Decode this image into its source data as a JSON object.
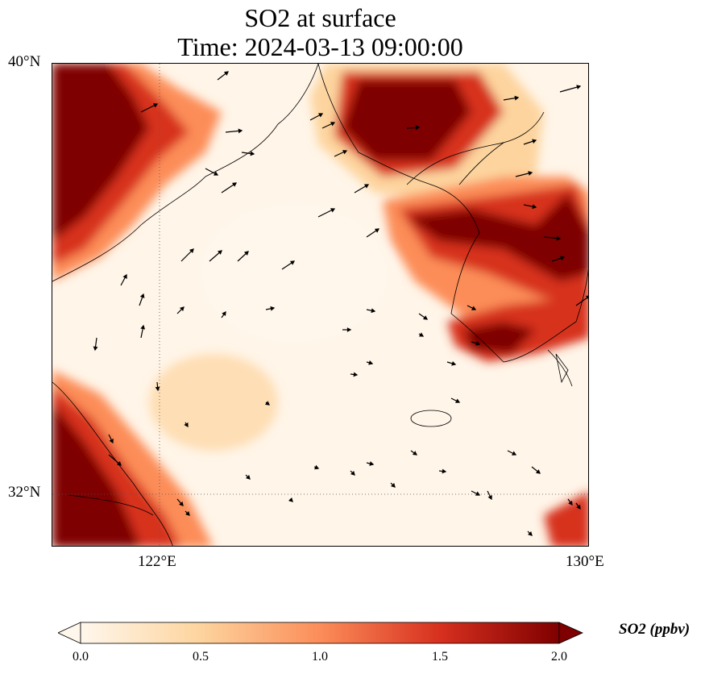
{
  "title": {
    "line1": "SO2 at surface",
    "line2": "Time: 2024-03-13 09:00:00"
  },
  "axes": {
    "lat_labels": [
      "40°N",
      "32°N"
    ],
    "lon_labels": [
      "122°E",
      "130°E"
    ],
    "lat_range": [
      31,
      40
    ],
    "lon_range": [
      120,
      130
    ],
    "gridlines": "dotted at 32°N and 122°E"
  },
  "colorbar": {
    "label": "SO2 (ppbv)",
    "ticks": [
      "0.0",
      "0.5",
      "1.0",
      "1.5",
      "2.0"
    ],
    "range": [
      0.0,
      2.0
    ],
    "extend": "both",
    "colormap": "OrRd",
    "colors": [
      "#fff7ec",
      "#fdd49e",
      "#fc8d59",
      "#d7301f",
      "#7f0000"
    ]
  },
  "map": {
    "variable": "SO2 concentration at surface",
    "high_regions": [
      "Liaoning / Bohai northwest",
      "North Korea west coast",
      "Central Korea",
      "Southern Korean coast",
      "Jiangsu / Shanghai coast"
    ],
    "overlay": "wind vectors"
  }
}
